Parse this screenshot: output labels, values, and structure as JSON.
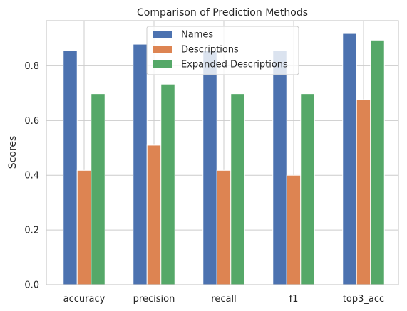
{
  "chart_data": {
    "type": "bar",
    "title": "Comparison of Prediction Methods",
    "xlabel": "",
    "ylabel": "Scores",
    "categories": [
      "accuracy",
      "precision",
      "recall",
      "f1",
      "top3_acc"
    ],
    "series": [
      {
        "name": "Names",
        "color": "#4c72b0",
        "values": [
          0.857,
          0.879,
          0.857,
          0.857,
          0.918
        ]
      },
      {
        "name": "Descriptions",
        "color": "#dd8452",
        "values": [
          0.418,
          0.51,
          0.418,
          0.4,
          0.676
        ]
      },
      {
        "name": "Expanded Descriptions",
        "color": "#55a868",
        "values": [
          0.698,
          0.733,
          0.698,
          0.698,
          0.894
        ]
      }
    ],
    "ylim": [
      0,
      0.965
    ],
    "yticks": [
      "0.0",
      "0.2",
      "0.4",
      "0.6",
      "0.8"
    ],
    "grid": true,
    "legend_position": "upper-center"
  }
}
